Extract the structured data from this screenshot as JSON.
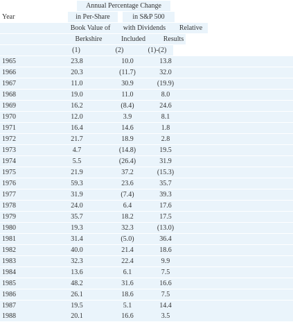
{
  "header": {
    "line1": {
      "span": "Annual Percentage Change"
    },
    "line2": {
      "year": "Year",
      "c1": "in Per-Share",
      "c2": "in S&P 500"
    },
    "line3": {
      "c1": "Book Value of",
      "c2": "with Dividends",
      "c3": "Relative"
    },
    "line4": {
      "c1": "Berkshire",
      "c2": "Included",
      "c3": "Results"
    },
    "line5": {
      "c1": "(1)",
      "c2": "(2)",
      "c3": "(1)-(2)"
    }
  },
  "rows": [
    {
      "year": "1965",
      "bv": "23.8",
      "sp": "10.0",
      "rel": "13.8"
    },
    {
      "year": "1966",
      "bv": "20.3",
      "sp": "(11.7)",
      "rel": "32.0"
    },
    {
      "year": "1967",
      "bv": "11.0",
      "sp": "30.9",
      "rel": "(19.9)"
    },
    {
      "year": "1968",
      "bv": "19.0",
      "sp": "11.0",
      "rel": "8.0"
    },
    {
      "year": "1969",
      "bv": "16.2",
      "sp": "(8.4)",
      "rel": "24.6"
    },
    {
      "year": "1970",
      "bv": "12.0",
      "sp": "3.9",
      "rel": "8.1"
    },
    {
      "year": "1971",
      "bv": "16.4",
      "sp": "14.6",
      "rel": "1.8"
    },
    {
      "year": "1972",
      "bv": "21.7",
      "sp": "18.9",
      "rel": "2.8"
    },
    {
      "year": "1973",
      "bv": "4.7",
      "sp": "(14.8)",
      "rel": "19.5"
    },
    {
      "year": "1974",
      "bv": "5.5",
      "sp": "(26.4)",
      "rel": "31.9"
    },
    {
      "year": "1975",
      "bv": "21.9",
      "sp": "37.2",
      "rel": "(15.3)"
    },
    {
      "year": "1976",
      "bv": "59.3",
      "sp": "23.6",
      "rel": "35.7"
    },
    {
      "year": "1977",
      "bv": "31.9",
      "sp": "(7.4)",
      "rel": "39.3"
    },
    {
      "year": "1978",
      "bv": "24.0",
      "sp": "6.4",
      "rel": "17.6"
    },
    {
      "year": "1979",
      "bv": "35.7",
      "sp": "18.2",
      "rel": "17.5"
    },
    {
      "year": "1980",
      "bv": "19.3",
      "sp": "32.3",
      "rel": "(13.0)"
    },
    {
      "year": "1981",
      "bv": "31.4",
      "sp": "(5.0)",
      "rel": "36.4"
    },
    {
      "year": "1982",
      "bv": "40.0",
      "sp": "21.4",
      "rel": "18.6"
    },
    {
      "year": "1983",
      "bv": "32.3",
      "sp": "22.4",
      "rel": "9.9"
    },
    {
      "year": "1984",
      "bv": "13.6",
      "sp": "6.1",
      "rel": "7.5"
    },
    {
      "year": "1985",
      "bv": "48.2",
      "sp": "31.6",
      "rel": "16.6"
    },
    {
      "year": "1986",
      "bv": "26.1",
      "sp": "18.6",
      "rel": "7.5"
    },
    {
      "year": "1987",
      "bv": "19.5",
      "sp": "5.1",
      "rel": "14.4"
    },
    {
      "year": "1988",
      "bv": "20.1",
      "sp": "16.6",
      "rel": "3.5"
    }
  ]
}
